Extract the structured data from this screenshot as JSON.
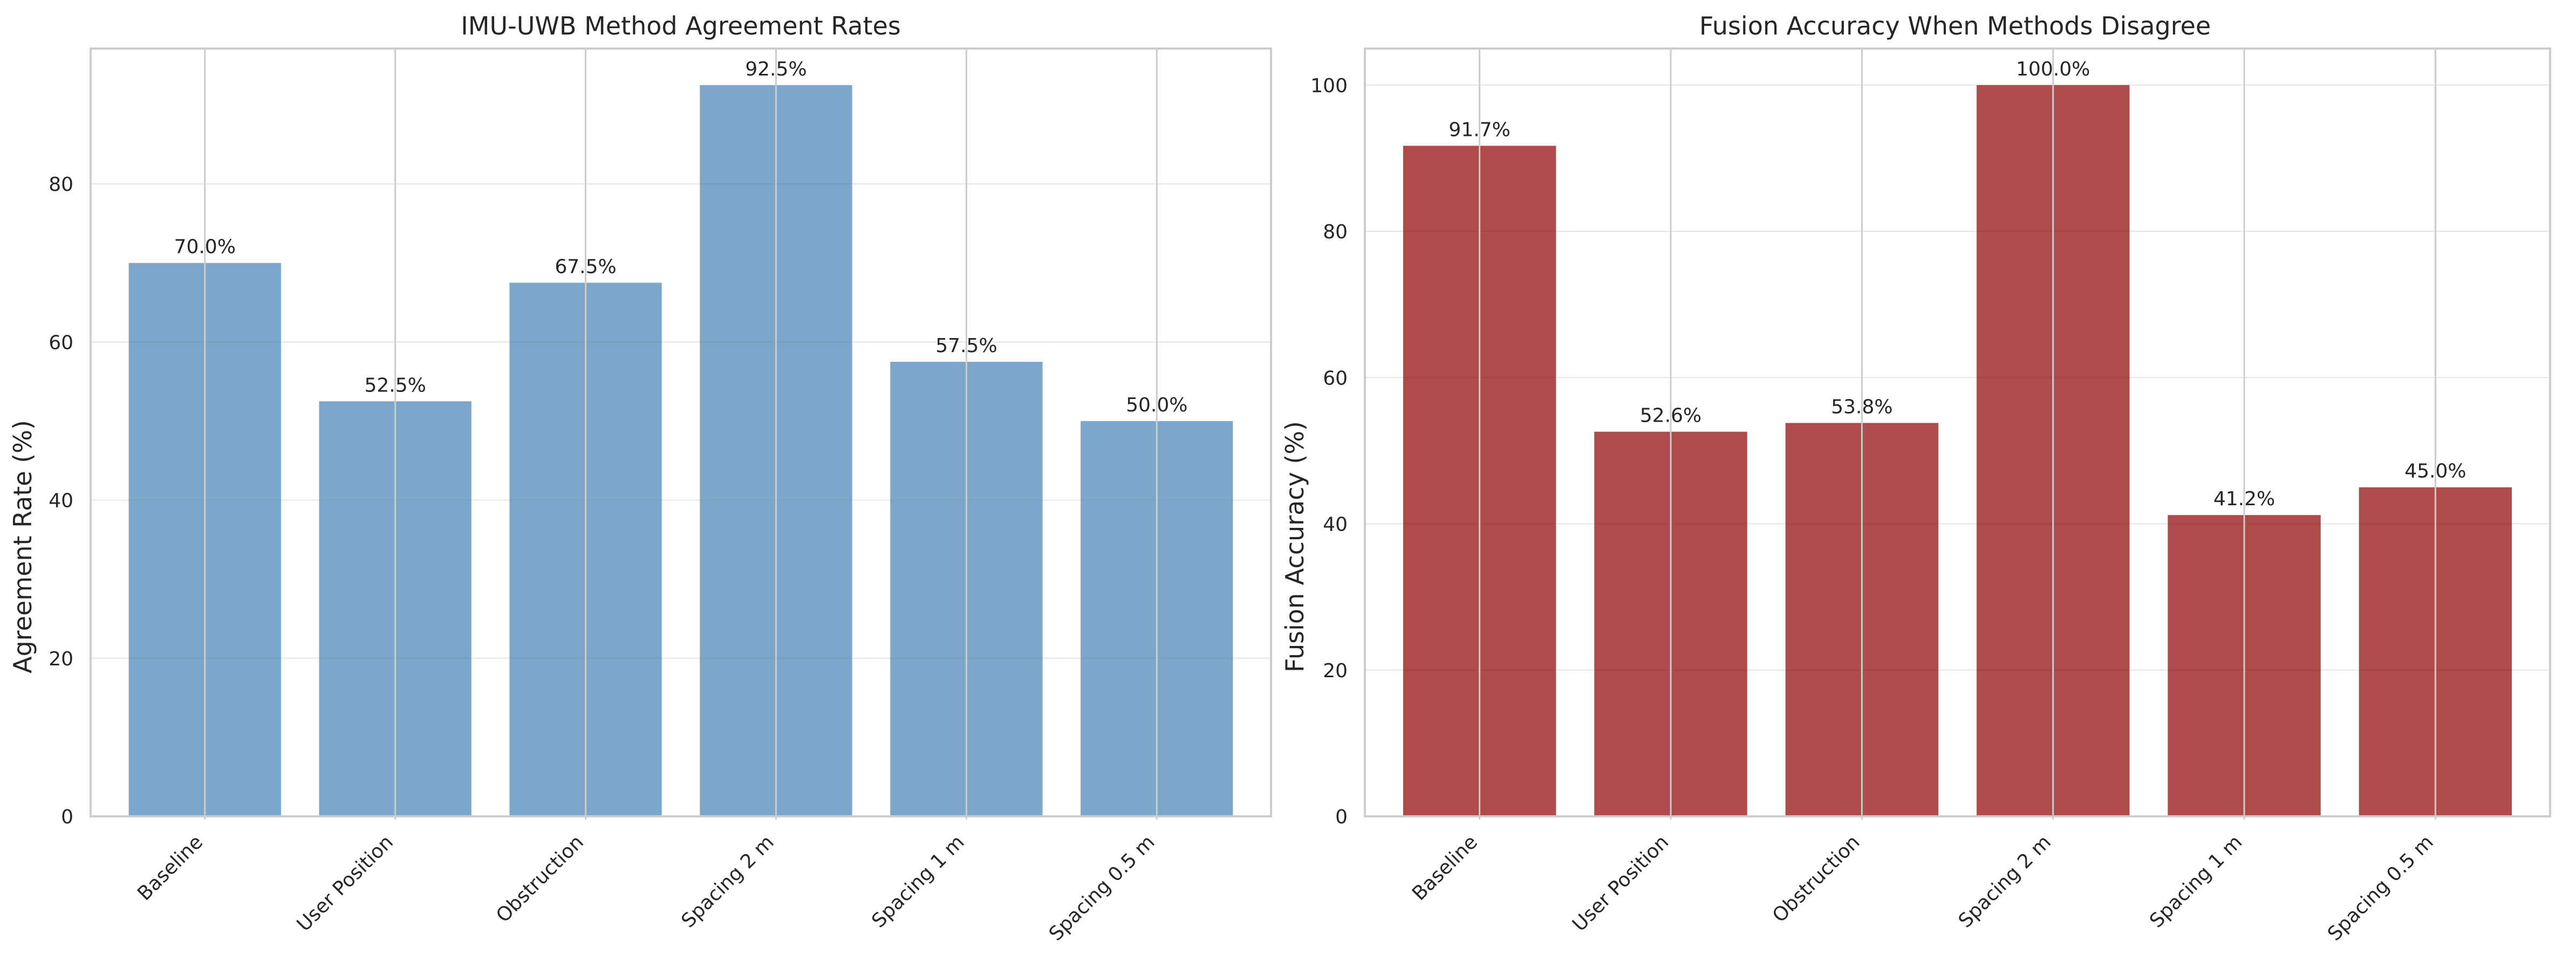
{
  "chart_data": [
    {
      "type": "bar",
      "title": "IMU-UWB Method Agreement Rates",
      "xlabel": "",
      "ylabel": "Agreement Rate (%)",
      "categories": [
        "Baseline",
        "User Position",
        "Obstruction",
        "Spacing 2 m",
        "Spacing 1 m",
        "Spacing 0.5 m"
      ],
      "values": [
        70.0,
        52.5,
        67.5,
        92.5,
        57.5,
        50.0
      ],
      "data_labels": [
        "70.0%",
        "52.5%",
        "67.5%",
        "92.5%",
        "57.5%",
        "50.0%"
      ],
      "ylim": [
        0,
        97.125
      ],
      "yticks": [
        0,
        20,
        40,
        60,
        80
      ],
      "ytick_labels": [
        "0",
        "20",
        "40",
        "60",
        "80"
      ],
      "bar_color": "#4682b4",
      "bar_opacity": 0.7,
      "grid": true,
      "legend": "none"
    },
    {
      "type": "bar",
      "title": "Fusion Accuracy When Methods Disagree",
      "xlabel": "",
      "ylabel": "Fusion Accuracy (%)",
      "categories": [
        "Baseline",
        "User Position",
        "Obstruction",
        "Spacing 2 m",
        "Spacing 1 m",
        "Spacing 0.5 m"
      ],
      "values": [
        91.7,
        52.6,
        53.8,
        100.0,
        41.2,
        45.0
      ],
      "data_labels": [
        "91.7%",
        "52.6%",
        "53.8%",
        "100.0%",
        "41.2%",
        "45.0%"
      ],
      "ylim": [
        0,
        105
      ],
      "yticks": [
        0,
        20,
        40,
        60,
        80,
        100
      ],
      "ytick_labels": [
        "0",
        "20",
        "40",
        "60",
        "80",
        "100"
      ],
      "bar_color": "#8b0000",
      "bar_opacity": 0.7,
      "grid": true,
      "legend": "none"
    }
  ]
}
